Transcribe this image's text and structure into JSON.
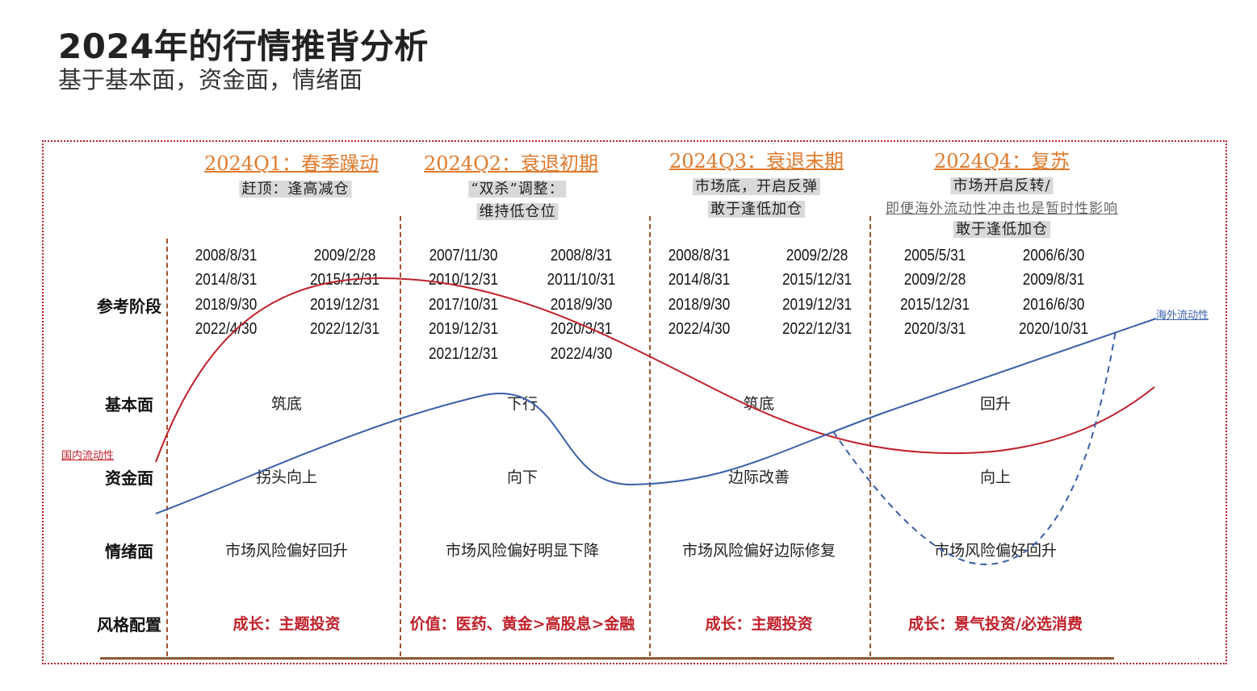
{
  "header": {
    "title": "2024年的行情推背分析",
    "subtitle": "基于基本面，资金面，情绪面"
  },
  "colors": {
    "frame": "#c0202a",
    "quarter_heading": "#e07a2c",
    "domestic_liquidity": "#c0202a",
    "overseas_liquidity": "#3a5fa8",
    "style_text": "#c0202a",
    "divider": "#a0522d"
  },
  "row_labels": {
    "reference": "参考阶段",
    "fundamentals": "基本面",
    "capital": "资金面",
    "sentiment": "情绪面",
    "style": "风格配置"
  },
  "curve_labels": {
    "domestic": "国内流动性",
    "overseas": "海外流动性"
  },
  "quarters": [
    {
      "heading": "2024Q1：春季躁动",
      "sub": [
        "赶顶：逢高减仓"
      ],
      "dates_left": [
        "2008/8/31",
        "2014/8/31",
        "2018/9/30",
        "2022/4/30"
      ],
      "dates_right": [
        "2009/2/28",
        "2015/12/31",
        "2019/12/31",
        "2022/12/31"
      ],
      "fundamentals": "筑底",
      "capital": "拐头向上",
      "sentiment": "市场风险偏好回升",
      "style": "成长：主题投资"
    },
    {
      "heading": "2024Q2：衰退初期",
      "sub": [
        "“双杀”调整：",
        "维持低仓位"
      ],
      "dates_left": [
        "2007/11/30",
        "2010/12/31",
        "2017/10/31",
        "2019/12/31",
        "2021/12/31"
      ],
      "dates_right": [
        "2008/8/31",
        "2011/10/31",
        "2018/9/30",
        "2020/3/31",
        "2022/4/30"
      ],
      "fundamentals": "下行",
      "capital": "向下",
      "sentiment": "市场风险偏好明显下降",
      "style": "价值：医药、黄金>高股息>金融"
    },
    {
      "heading": "2024Q3：衰退末期",
      "sub": [
        "市场底，开启反弹",
        "敢于逢低加仓"
      ],
      "dates_left": [
        "2008/8/31",
        "2014/8/31",
        "2018/9/30",
        "2022/4/30"
      ],
      "dates_right": [
        "2009/2/28",
        "2015/12/31",
        "2019/12/31",
        "2022/12/31"
      ],
      "fundamentals": "筑底",
      "capital": "边际改善",
      "sentiment": "市场风险偏好边际修复",
      "style": "成长：主题投资"
    },
    {
      "heading": "2024Q4：复苏",
      "sub": [
        "市场开启反转/",
        "即便海外流动性冲击也是暂时性影响",
        "敢于逢低加仓"
      ],
      "dates_left": [
        "2005/5/31",
        "2009/2/28",
        "2015/12/31",
        "2020/3/31"
      ],
      "dates_right": [
        "2006/6/30",
        "2009/8/31",
        "2016/6/30",
        "2020/10/31"
      ],
      "fundamentals": "回升",
      "capital": "向上",
      "sentiment": "市场风险偏好回升",
      "style": "成长：景气投资/必选消费"
    }
  ]
}
